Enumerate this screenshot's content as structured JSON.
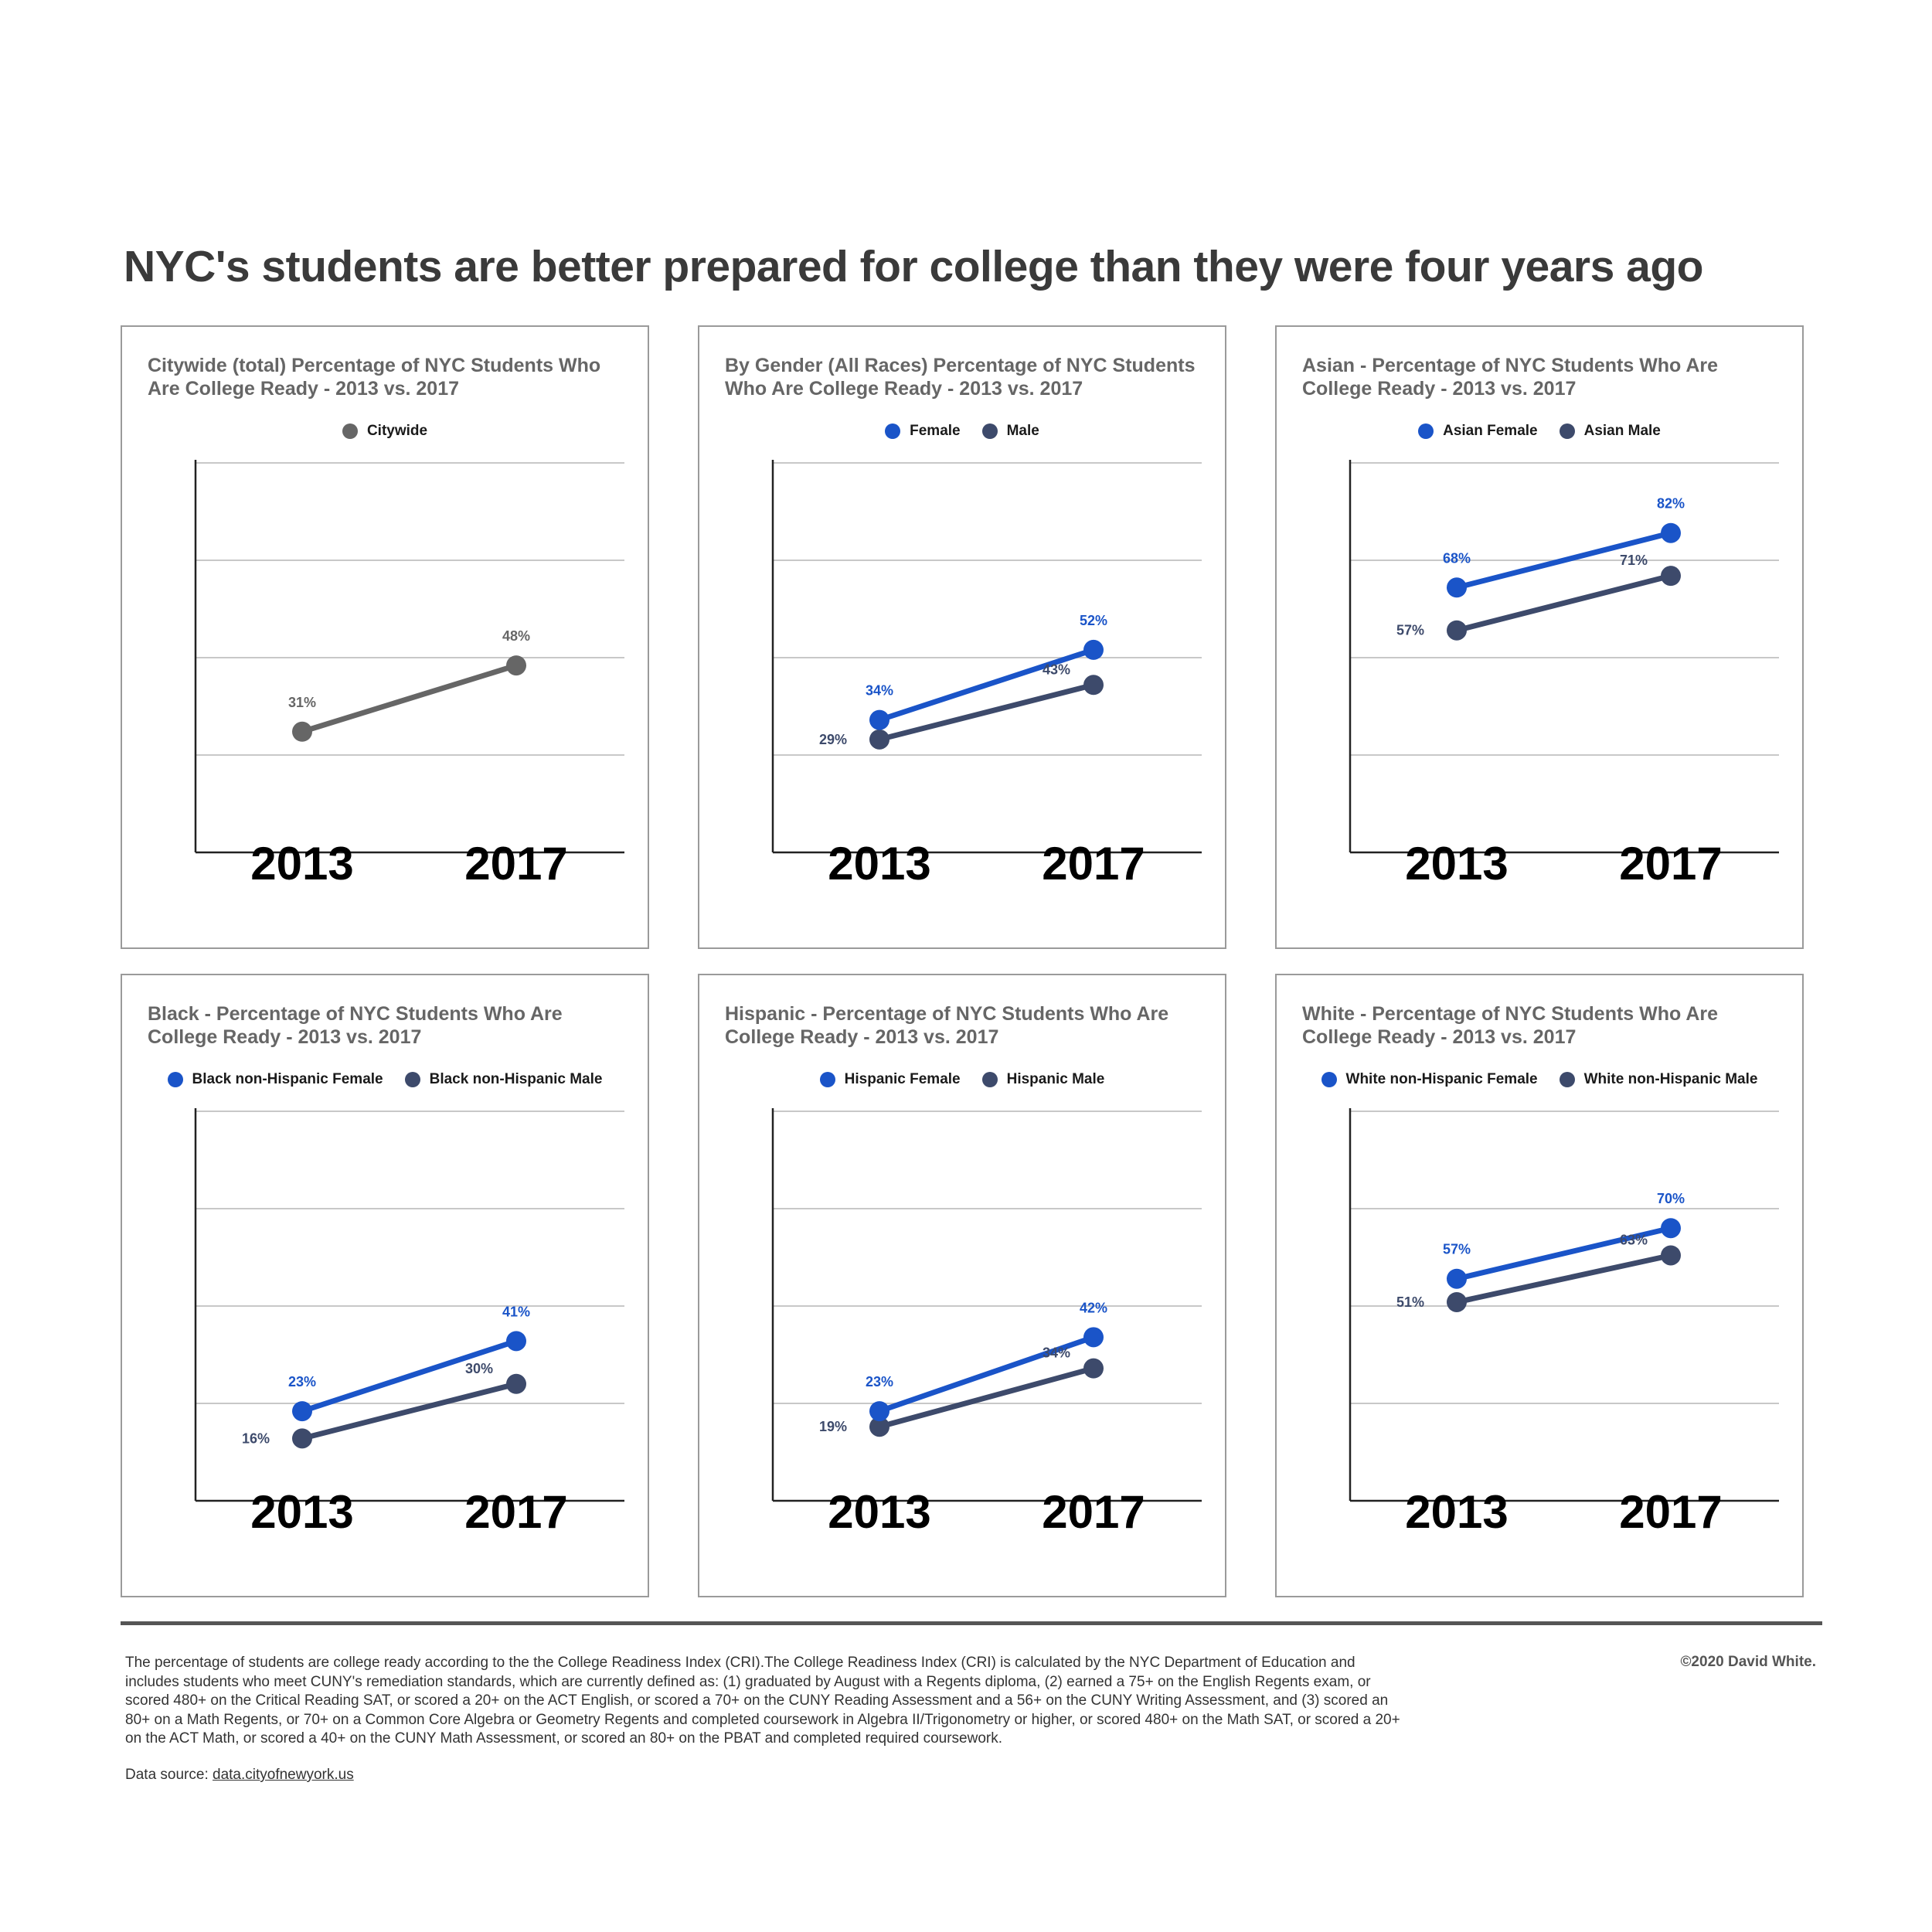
{
  "title": "NYC's students are better prepared for college than they were four years ago",
  "chart_data": [
    {
      "type": "line",
      "title": "Citywide (total) Percentage of NYC Students Who Are College Ready - 2013 vs. 2017",
      "x": [
        "2013",
        "2017"
      ],
      "series": [
        {
          "name": "Citywide",
          "color": "#666666",
          "values": [
            31,
            48
          ],
          "labels": [
            "31%",
            "48%"
          ]
        }
      ],
      "ylim": [
        0,
        100
      ],
      "grid": true,
      "legend": "top-center"
    },
    {
      "type": "line",
      "title": "By Gender (All Races) Percentage of NYC Students Who Are College Ready - 2013 vs. 2017",
      "x": [
        "2013",
        "2017"
      ],
      "series": [
        {
          "name": "Female",
          "color": "#1a54c8",
          "values": [
            34,
            52
          ],
          "labels": [
            "34%",
            "52%"
          ]
        },
        {
          "name": "Male",
          "color": "#3d4a6b",
          "values": [
            29,
            43
          ],
          "labels": [
            "29%",
            "43%"
          ]
        }
      ],
      "ylim": [
        0,
        100
      ],
      "grid": true,
      "legend": "top-center"
    },
    {
      "type": "line",
      "title": "Asian - Percentage of NYC Students Who Are College Ready - 2013 vs. 2017",
      "x": [
        "2013",
        "2017"
      ],
      "series": [
        {
          "name": "Asian Female",
          "color": "#1a54c8",
          "values": [
            68,
            82
          ],
          "labels": [
            "68%",
            "82%"
          ]
        },
        {
          "name": "Asian Male",
          "color": "#3d4a6b",
          "values": [
            57,
            71
          ],
          "labels": [
            "57%",
            "71%"
          ]
        }
      ],
      "ylim": [
        0,
        100
      ],
      "grid": true,
      "legend": "top-center"
    },
    {
      "type": "line",
      "title": "Black - Percentage of NYC Students Who Are College Ready - 2013 vs. 2017",
      "x": [
        "2013",
        "2017"
      ],
      "series": [
        {
          "name": "Black non-Hispanic Female",
          "color": "#1a54c8",
          "values": [
            23,
            41
          ],
          "labels": [
            "23%",
            "41%"
          ]
        },
        {
          "name": "Black non-Hispanic Male",
          "color": "#3d4a6b",
          "values": [
            16,
            30
          ],
          "labels": [
            "16%",
            "30%"
          ]
        }
      ],
      "ylim": [
        0,
        100
      ],
      "grid": true,
      "legend": "top-center"
    },
    {
      "type": "line",
      "title": "Hispanic - Percentage of NYC Students Who Are College Ready - 2013 vs. 2017",
      "x": [
        "2013",
        "2017"
      ],
      "series": [
        {
          "name": "Hispanic Female",
          "color": "#1a54c8",
          "values": [
            23,
            42
          ],
          "labels": [
            "23%",
            "42%"
          ]
        },
        {
          "name": "Hispanic Male",
          "color": "#3d4a6b",
          "values": [
            19,
            34
          ],
          "labels": [
            "19%",
            "34%"
          ]
        }
      ],
      "ylim": [
        0,
        100
      ],
      "grid": true,
      "legend": "top-center"
    },
    {
      "type": "line",
      "title": "White - Percentage of NYC Students Who Are College Ready - 2013 vs. 2017",
      "x": [
        "2013",
        "2017"
      ],
      "series": [
        {
          "name": "White non-Hispanic Female",
          "color": "#1a54c8",
          "values": [
            57,
            70
          ],
          "labels": [
            "57%",
            "70%"
          ]
        },
        {
          "name": "White non-Hispanic Male",
          "color": "#3d4a6b",
          "values": [
            51,
            63
          ],
          "labels": [
            "51%",
            "63%"
          ]
        }
      ],
      "ylim": [
        0,
        100
      ],
      "grid": true,
      "legend": "top-center"
    }
  ],
  "footnote": "The percentage of students are college ready according to the the College Readiness Index (CRI).The College Readiness Index (CRI) is calculated by the NYC Department of Education and includes students who meet CUNY's remediation standards, which are currently defined as: (1) graduated by August with a Regents diploma, (2) earned a 75+ on the English Regents exam, or scored 480+ on the Critical Reading SAT, or scored a 20+ on the ACT English, or scored a 70+ on the CUNY Reading Assessment and a 56+ on the CUNY Writing Assessment, and (3) scored an 80+ on a Math Regents, or 70+ on a Common Core Algebra or Geometry Regents and completed coursework in Algebra II/Trigonometry or higher, or scored 480+ on the Math SAT, or scored a 20+ on the ACT Math, or scored a 40+ on the CUNY Math Assessment, or scored an 80+ on the PBAT and completed required coursework.",
  "source_prefix": "Data source: ",
  "source_link": "data.cityofnewyork.us",
  "copyright": "©2020 David White."
}
